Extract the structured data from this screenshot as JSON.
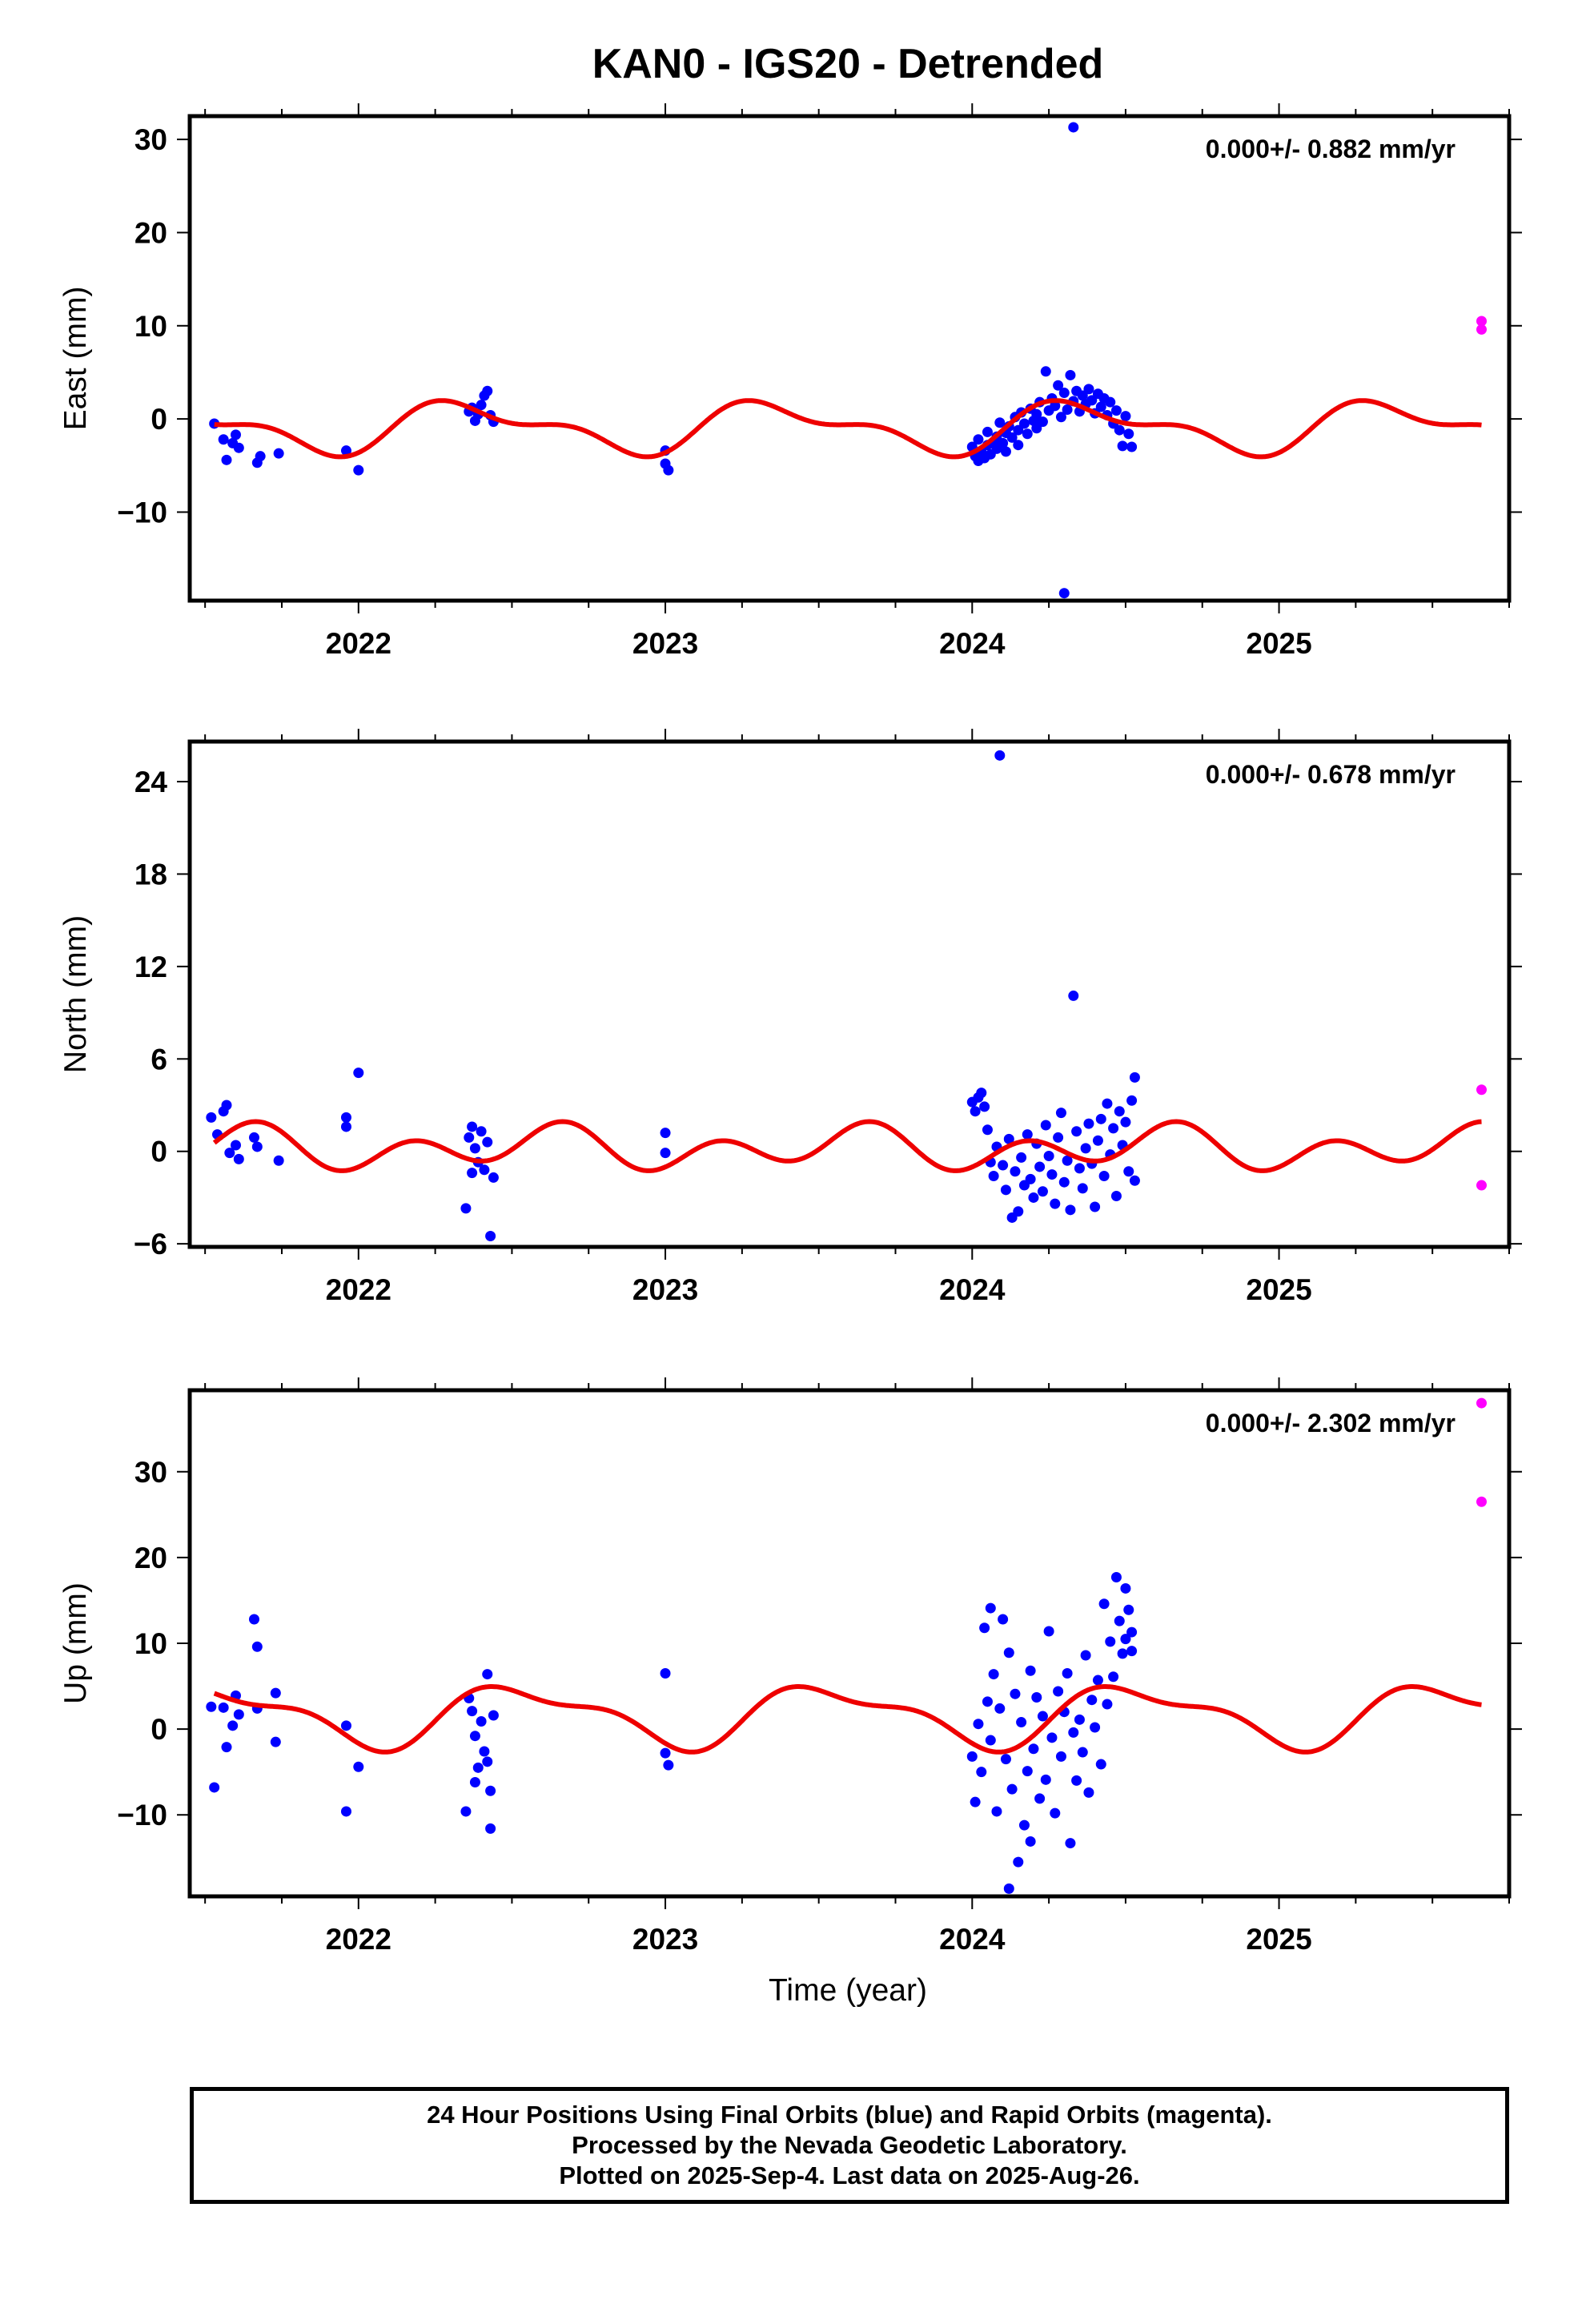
{
  "title": "KAN0 - IGS20 - Detrended",
  "xlabel": "Time (year)",
  "footer": [
    "24 Hour Positions Using Final Orbits (blue) and Rapid Orbits (magenta).",
    "Processed by the Nevada Geodetic Laboratory.",
    "Plotted on 2025-Sep-4. Last data on 2025-Aug-26."
  ],
  "colors": {
    "final": "#0000ff",
    "rapid": "#ff00ff",
    "model": "#ee0000",
    "axis": "#000000"
  },
  "chart_data": [
    {
      "type": "scatter",
      "ylabel": "East (mm)",
      "rate": "0.000+/- 0.882 mm/yr",
      "xlim": [
        2021.45,
        2025.75
      ],
      "ylim": [
        -19.5,
        32.5
      ],
      "xticks": [
        2022,
        2023,
        2024,
        2025
      ],
      "yticks": [
        -10,
        0,
        10,
        20,
        30
      ],
      "model": {
        "mean": -0.9,
        "a1": 2.3,
        "p1": 0.12,
        "a2": 1.2,
        "p2": 0.6
      },
      "final": [
        [
          2021.53,
          -0.5
        ],
        [
          2021.56,
          -2.2
        ],
        [
          2021.57,
          -4.4
        ],
        [
          2021.59,
          -2.6
        ],
        [
          2021.6,
          -1.7
        ],
        [
          2021.61,
          -3.1
        ],
        [
          2021.67,
          -4.7
        ],
        [
          2021.68,
          -4.0
        ],
        [
          2021.74,
          -3.7
        ],
        [
          2021.96,
          -3.4
        ],
        [
          2022.0,
          -5.5
        ],
        [
          2022.36,
          0.8
        ],
        [
          2022.37,
          1.2
        ],
        [
          2022.38,
          -0.2
        ],
        [
          2022.39,
          0.5
        ],
        [
          2022.4,
          1.5
        ],
        [
          2022.41,
          2.5
        ],
        [
          2022.42,
          3.0
        ],
        [
          2022.43,
          0.4
        ],
        [
          2022.44,
          -0.3
        ],
        [
          2023.0,
          -3.4
        ],
        [
          2023.0,
          -4.8
        ],
        [
          2023.01,
          -5.5
        ],
        [
          2024.0,
          -3.0
        ],
        [
          2024.01,
          -4.0
        ],
        [
          2024.02,
          -2.2
        ],
        [
          2024.02,
          -4.5
        ],
        [
          2024.03,
          -3.5
        ],
        [
          2024.04,
          -4.2
        ],
        [
          2024.05,
          -2.8
        ],
        [
          2024.05,
          -1.4
        ],
        [
          2024.06,
          -3.8
        ],
        [
          2024.07,
          -2.5
        ],
        [
          2024.08,
          -1.9
        ],
        [
          2024.08,
          -3.2
        ],
        [
          2024.09,
          -0.4
        ],
        [
          2024.1,
          -2.6
        ],
        [
          2024.11,
          -1.5
        ],
        [
          2024.11,
          -3.5
        ],
        [
          2024.12,
          -0.8
        ],
        [
          2024.13,
          -2.0
        ],
        [
          2024.14,
          0.2
        ],
        [
          2024.15,
          -1.2
        ],
        [
          2024.15,
          -2.8
        ],
        [
          2024.16,
          0.7
        ],
        [
          2024.17,
          -0.5
        ],
        [
          2024.18,
          -1.6
        ],
        [
          2024.19,
          1.1
        ],
        [
          2024.2,
          -0.2
        ],
        [
          2024.21,
          -1.0
        ],
        [
          2024.21,
          0.5
        ],
        [
          2024.22,
          1.8
        ],
        [
          2024.23,
          -0.3
        ],
        [
          2024.24,
          5.1
        ],
        [
          2024.25,
          0.9
        ],
        [
          2024.26,
          2.2
        ],
        [
          2024.27,
          1.4
        ],
        [
          2024.28,
          3.6
        ],
        [
          2024.29,
          0.2
        ],
        [
          2024.3,
          2.8
        ],
        [
          2024.31,
          1.0
        ],
        [
          2024.32,
          4.7
        ],
        [
          2024.33,
          1.9
        ],
        [
          2024.34,
          3.0
        ],
        [
          2024.35,
          0.8
        ],
        [
          2024.36,
          2.5
        ],
        [
          2024.37,
          1.6
        ],
        [
          2024.38,
          3.2
        ],
        [
          2024.39,
          2.0
        ],
        [
          2024.4,
          0.6
        ],
        [
          2024.41,
          2.7
        ],
        [
          2024.42,
          1.3
        ],
        [
          2024.43,
          2.2
        ],
        [
          2024.44,
          0.4
        ],
        [
          2024.45,
          1.8
        ],
        [
          2024.46,
          -0.5
        ],
        [
          2024.47,
          0.9
        ],
        [
          2024.48,
          -1.2
        ],
        [
          2024.49,
          -2.9
        ],
        [
          2024.5,
          0.3
        ],
        [
          2024.51,
          -1.6
        ],
        [
          2024.52,
          -3.0
        ],
        [
          2024.33,
          31.3
        ],
        [
          2024.3,
          -18.7
        ]
      ],
      "rapid": [
        [
          2025.66,
          10.5
        ],
        [
          2025.66,
          9.6
        ]
      ]
    },
    {
      "type": "scatter",
      "ylabel": "North (mm)",
      "rate": "0.000+/- 0.678 mm/yr",
      "xlim": [
        2021.45,
        2025.75
      ],
      "ylim": [
        -6.2,
        26.6
      ],
      "xticks": [
        2022,
        2023,
        2024,
        2025
      ],
      "yticks": [
        -6,
        0,
        6,
        12,
        18,
        24
      ],
      "model": {
        "mean": 0.2,
        "a1": 0.7,
        "p1": 0.35,
        "a2": 1.1,
        "p2": 0.05
      },
      "final": [
        [
          2021.52,
          2.2
        ],
        [
          2021.54,
          1.1
        ],
        [
          2021.56,
          2.6
        ],
        [
          2021.57,
          3.0
        ],
        [
          2021.58,
          -0.1
        ],
        [
          2021.6,
          0.4
        ],
        [
          2021.61,
          -0.5
        ],
        [
          2021.66,
          0.9
        ],
        [
          2021.67,
          0.3
        ],
        [
          2021.74,
          -0.6
        ],
        [
          2021.96,
          2.2
        ],
        [
          2021.96,
          1.6
        ],
        [
          2022.0,
          5.1
        ],
        [
          2022.35,
          -3.7
        ],
        [
          2022.36,
          0.9
        ],
        [
          2022.37,
          1.6
        ],
        [
          2022.37,
          -1.4
        ],
        [
          2022.38,
          0.2
        ],
        [
          2022.39,
          -0.7
        ],
        [
          2022.4,
          1.3
        ],
        [
          2022.41,
          -1.2
        ],
        [
          2022.42,
          0.6
        ],
        [
          2022.43,
          -5.5
        ],
        [
          2022.44,
          -1.7
        ],
        [
          2023.0,
          1.2
        ],
        [
          2023.0,
          -0.1
        ],
        [
          2024.0,
          3.2
        ],
        [
          2024.01,
          2.6
        ],
        [
          2024.02,
          3.5
        ],
        [
          2024.03,
          3.8
        ],
        [
          2024.04,
          2.9
        ],
        [
          2024.05,
          1.4
        ],
        [
          2024.06,
          -0.7
        ],
        [
          2024.07,
          -1.6
        ],
        [
          2024.08,
          0.3
        ],
        [
          2024.09,
          25.7
        ],
        [
          2024.1,
          -0.9
        ],
        [
          2024.11,
          -2.5
        ],
        [
          2024.12,
          0.8
        ],
        [
          2024.13,
          -4.3
        ],
        [
          2024.14,
          -1.3
        ],
        [
          2024.15,
          -3.9
        ],
        [
          2024.16,
          -0.4
        ],
        [
          2024.17,
          -2.2
        ],
        [
          2024.18,
          1.1
        ],
        [
          2024.19,
          -1.8
        ],
        [
          2024.2,
          -3.0
        ],
        [
          2024.21,
          0.5
        ],
        [
          2024.22,
          -1.0
        ],
        [
          2024.23,
          -2.6
        ],
        [
          2024.24,
          1.7
        ],
        [
          2024.25,
          -0.3
        ],
        [
          2024.26,
          -1.5
        ],
        [
          2024.27,
          -3.4
        ],
        [
          2024.28,
          0.9
        ],
        [
          2024.29,
          2.5
        ],
        [
          2024.3,
          -2.0
        ],
        [
          2024.31,
          -0.6
        ],
        [
          2024.32,
          -3.8
        ],
        [
          2024.33,
          10.1
        ],
        [
          2024.34,
          1.3
        ],
        [
          2024.35,
          -1.1
        ],
        [
          2024.36,
          -2.4
        ],
        [
          2024.37,
          0.2
        ],
        [
          2024.38,
          1.8
        ],
        [
          2024.39,
          -0.8
        ],
        [
          2024.4,
          -3.6
        ],
        [
          2024.41,
          0.7
        ],
        [
          2024.42,
          2.1
        ],
        [
          2024.43,
          -1.6
        ],
        [
          2024.44,
          3.1
        ],
        [
          2024.45,
          -0.2
        ],
        [
          2024.46,
          1.5
        ],
        [
          2024.47,
          -2.9
        ],
        [
          2024.48,
          2.6
        ],
        [
          2024.49,
          0.4
        ],
        [
          2024.5,
          1.9
        ],
        [
          2024.51,
          -1.3
        ],
        [
          2024.52,
          3.3
        ],
        [
          2024.53,
          4.8
        ],
        [
          2024.53,
          -1.9
        ]
      ],
      "rapid": [
        [
          2025.66,
          4.0
        ],
        [
          2025.66,
          -2.2
        ]
      ]
    },
    {
      "type": "scatter",
      "ylabel": "Up (mm)",
      "rate": "0.000+/- 2.302 mm/yr",
      "xlim": [
        2021.45,
        2025.75
      ],
      "ylim": [
        -19.5,
        39.5
      ],
      "xticks": [
        2022,
        2023,
        2024,
        2025
      ],
      "yticks": [
        -10,
        0,
        10,
        20,
        30
      ],
      "model": {
        "mean": 1.6,
        "a1": 3.2,
        "p1": 0.29,
        "a2": 1.3,
        "p2": 0.24
      },
      "final": [
        [
          2021.52,
          2.6
        ],
        [
          2021.53,
          -6.8
        ],
        [
          2021.56,
          2.5
        ],
        [
          2021.57,
          -2.1
        ],
        [
          2021.59,
          0.4
        ],
        [
          2021.6,
          3.9
        ],
        [
          2021.61,
          1.7
        ],
        [
          2021.66,
          12.8
        ],
        [
          2021.67,
          9.6
        ],
        [
          2021.67,
          2.4
        ],
        [
          2021.73,
          4.2
        ],
        [
          2021.73,
          -1.5
        ],
        [
          2021.96,
          0.4
        ],
        [
          2021.96,
          -9.6
        ],
        [
          2022.0,
          -4.4
        ],
        [
          2022.35,
          -9.6
        ],
        [
          2022.36,
          3.6
        ],
        [
          2022.37,
          2.1
        ],
        [
          2022.38,
          -0.8
        ],
        [
          2022.38,
          -6.2
        ],
        [
          2022.39,
          -4.5
        ],
        [
          2022.4,
          0.9
        ],
        [
          2022.41,
          -2.6
        ],
        [
          2022.42,
          6.4
        ],
        [
          2022.42,
          -3.8
        ],
        [
          2022.43,
          -7.2
        ],
        [
          2022.43,
          -11.6
        ],
        [
          2022.44,
          1.6
        ],
        [
          2023.0,
          6.5
        ],
        [
          2023.0,
          -2.8
        ],
        [
          2023.01,
          -4.2
        ],
        [
          2024.0,
          -3.2
        ],
        [
          2024.01,
          -8.5
        ],
        [
          2024.02,
          0.6
        ],
        [
          2024.03,
          -5.0
        ],
        [
          2024.04,
          11.8
        ],
        [
          2024.05,
          3.2
        ],
        [
          2024.06,
          14.1
        ],
        [
          2024.06,
          -1.3
        ],
        [
          2024.07,
          6.4
        ],
        [
          2024.08,
          -9.6
        ],
        [
          2024.09,
          2.4
        ],
        [
          2024.1,
          12.8
        ],
        [
          2024.11,
          -3.5
        ],
        [
          2024.12,
          8.9
        ],
        [
          2024.12,
          -18.6
        ],
        [
          2024.13,
          -7.0
        ],
        [
          2024.14,
          4.1
        ],
        [
          2024.15,
          -15.5
        ],
        [
          2024.16,
          0.8
        ],
        [
          2024.17,
          -11.2
        ],
        [
          2024.18,
          -4.9
        ],
        [
          2024.19,
          6.8
        ],
        [
          2024.19,
          -13.1
        ],
        [
          2024.2,
          -2.3
        ],
        [
          2024.21,
          3.7
        ],
        [
          2024.22,
          -8.1
        ],
        [
          2024.23,
          1.5
        ],
        [
          2024.24,
          -5.9
        ],
        [
          2024.25,
          11.4
        ],
        [
          2024.26,
          -1.0
        ],
        [
          2024.27,
          -9.8
        ],
        [
          2024.28,
          4.4
        ],
        [
          2024.29,
          -3.2
        ],
        [
          2024.3,
          2.0
        ],
        [
          2024.31,
          6.5
        ],
        [
          2024.32,
          -13.3
        ],
        [
          2024.33,
          -0.4
        ],
        [
          2024.34,
          -6.0
        ],
        [
          2024.35,
          1.1
        ],
        [
          2024.36,
          -2.7
        ],
        [
          2024.37,
          8.6
        ],
        [
          2024.38,
          -7.4
        ],
        [
          2024.39,
          3.4
        ],
        [
          2024.4,
          0.2
        ],
        [
          2024.41,
          5.7
        ],
        [
          2024.42,
          -4.1
        ],
        [
          2024.43,
          14.6
        ],
        [
          2024.44,
          2.9
        ],
        [
          2024.45,
          10.2
        ],
        [
          2024.46,
          6.1
        ],
        [
          2024.47,
          17.7
        ],
        [
          2024.48,
          12.6
        ],
        [
          2024.49,
          8.8
        ],
        [
          2024.5,
          16.4
        ],
        [
          2024.5,
          10.5
        ],
        [
          2024.51,
          13.9
        ],
        [
          2024.52,
          9.1
        ],
        [
          2024.52,
          11.3
        ]
      ],
      "rapid": [
        [
          2025.66,
          38.0
        ],
        [
          2025.66,
          26.5
        ]
      ]
    }
  ]
}
